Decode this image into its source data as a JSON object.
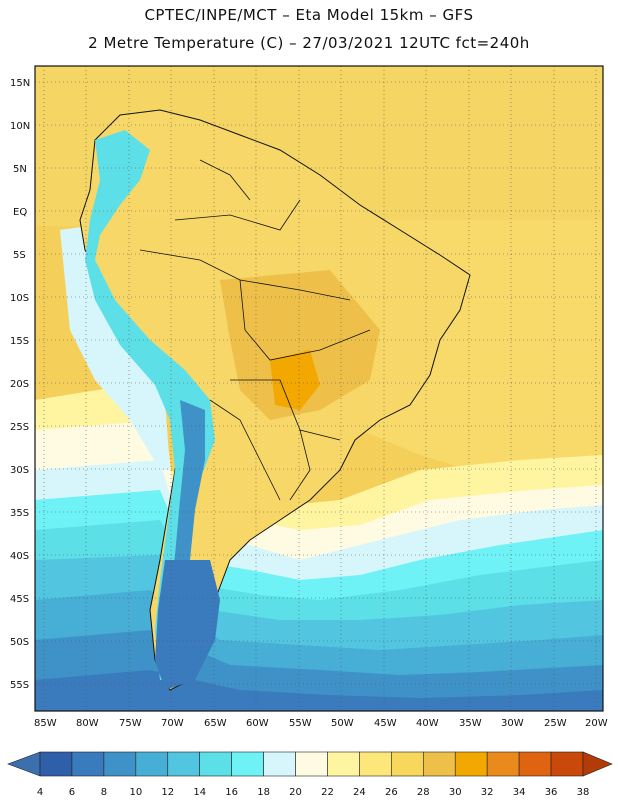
{
  "header": {
    "line1": "CPTEC/INPE/MCT –  Eta Model 15km – GFS",
    "line2": "2 Metre Temperature (C) – 27/03/2021 12UTC fct=240h"
  },
  "axes": {
    "lat_labels": [
      "15N",
      "10N",
      "5N",
      "EQ",
      "5S",
      "10S",
      "15S",
      "20S",
      "25S",
      "30S",
      "35S",
      "40S",
      "45S",
      "50S",
      "55S"
    ],
    "lon_labels": [
      "85W",
      "80W",
      "75W",
      "70W",
      "65W",
      "60W",
      "55W",
      "50W",
      "45W",
      "40W",
      "35W",
      "30W",
      "25W",
      "20W"
    ]
  },
  "legend": {
    "ticks": [
      "4",
      "6",
      "8",
      "10",
      "12",
      "14",
      "16",
      "18",
      "20",
      "22",
      "24",
      "26",
      "28",
      "30",
      "32",
      "34",
      "36",
      "38"
    ],
    "colors": [
      "#2e5fa8",
      "#3a7bbd",
      "#3f92c8",
      "#47aed6",
      "#52c6e0",
      "#5ddfe8",
      "#6ef2f6",
      "#d7f6fb",
      "#fffbe3",
      "#fff5a1",
      "#fde77a",
      "#f7d75c",
      "#eec04a",
      "#f2a800",
      "#ea8a1c",
      "#df6310",
      "#c9480a"
    ],
    "low_arrow_color": "#3b6fad",
    "high_arrow_color": "#b33b07"
  },
  "map": {
    "grid": "dotted",
    "ocean_default_color": "#f6d862"
  }
}
